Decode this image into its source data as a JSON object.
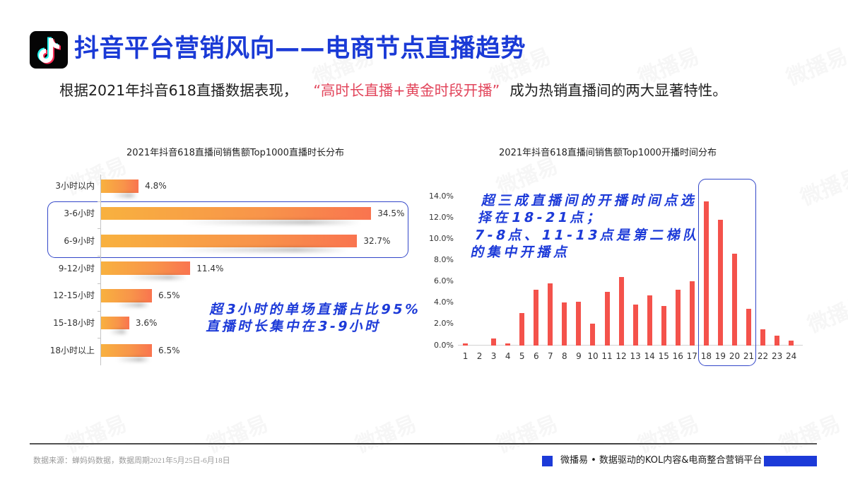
{
  "header": {
    "logo_icon": "tiktok-logo-icon",
    "title": "抖音平台营销风向——电商节点直播趋势"
  },
  "subtitle": {
    "prefix": "根据2021年抖音618直播数据表现，",
    "highlight": "“高时长直播+黄金时段开播”",
    "suffix": "成为热销直播间的两大显著特性。"
  },
  "colors": {
    "brand_blue": "#1c3ad8",
    "highlight_red": "#e2465c",
    "bar_gradient_start": "#f8b13f",
    "bar_gradient_end": "#f9744f",
    "vbar_red": "#f4524b",
    "highlight_box": "#3347c9"
  },
  "chart_data": [
    {
      "type": "bar",
      "orientation": "horizontal",
      "title": "2021年抖音618直播间销售额Top1000直播时长分布",
      "xlabel": "",
      "ylabel": "",
      "grid": false,
      "legend": null,
      "categories": [
        "3小时以内",
        "3-6小时",
        "6-9小时",
        "9-12小时",
        "12-15小时",
        "15-18小时",
        "18小时以上"
      ],
      "values": [
        4.8,
        34.5,
        32.7,
        11.4,
        6.5,
        3.6,
        6.5
      ],
      "value_labels": [
        "4.8%",
        "34.5%",
        "32.7%",
        "11.4%",
        "6.5%",
        "3.6%",
        "6.5%"
      ],
      "unit": "%",
      "highlighted_categories": [
        "3-6小时",
        "6-9小时"
      ],
      "annotation": [
        "超3小时的单场直播占比95%",
        "直播时长集中在3-9小时"
      ]
    },
    {
      "type": "bar",
      "orientation": "vertical",
      "title": "2021年抖音618直播间销售额Top1000开播时间分布",
      "xlabel": "",
      "ylabel": "",
      "grid": false,
      "legend": null,
      "categories": [
        "1",
        "2",
        "3",
        "4",
        "5",
        "6",
        "7",
        "8",
        "9",
        "10",
        "11",
        "12",
        "13",
        "14",
        "15",
        "16",
        "17",
        "18",
        "19",
        "20",
        "21",
        "22",
        "23",
        "24"
      ],
      "values": [
        0.2,
        0.0,
        0.6,
        0.2,
        3.0,
        5.2,
        5.8,
        4.0,
        4.1,
        2.0,
        5.0,
        6.4,
        3.8,
        4.7,
        3.7,
        5.2,
        6.0,
        13.5,
        11.8,
        8.6,
        3.4,
        1.5,
        0.9,
        0.4
      ],
      "unit": "%",
      "ylim": [
        0,
        14
      ],
      "yticks": [
        "0.0%",
        "2.0%",
        "4.0%",
        "6.0%",
        "8.0%",
        "10.0%",
        "12.0%",
        "14.0%"
      ],
      "highlighted_categories": [
        "18",
        "19",
        "20",
        "21"
      ],
      "annotation": [
        "超三成直播间的开播时间点选",
        "择在18-21点；",
        "7-8点、11-13点是第二梯队",
        "的集中开播点"
      ]
    }
  ],
  "footer": {
    "source": "数据来源：蝉妈妈数据，数据周期2021年5月25日-6月18日",
    "brand": "微播易 • 数据驱动的KOL内容&电商整合营销平台"
  },
  "watermark": "微播易"
}
